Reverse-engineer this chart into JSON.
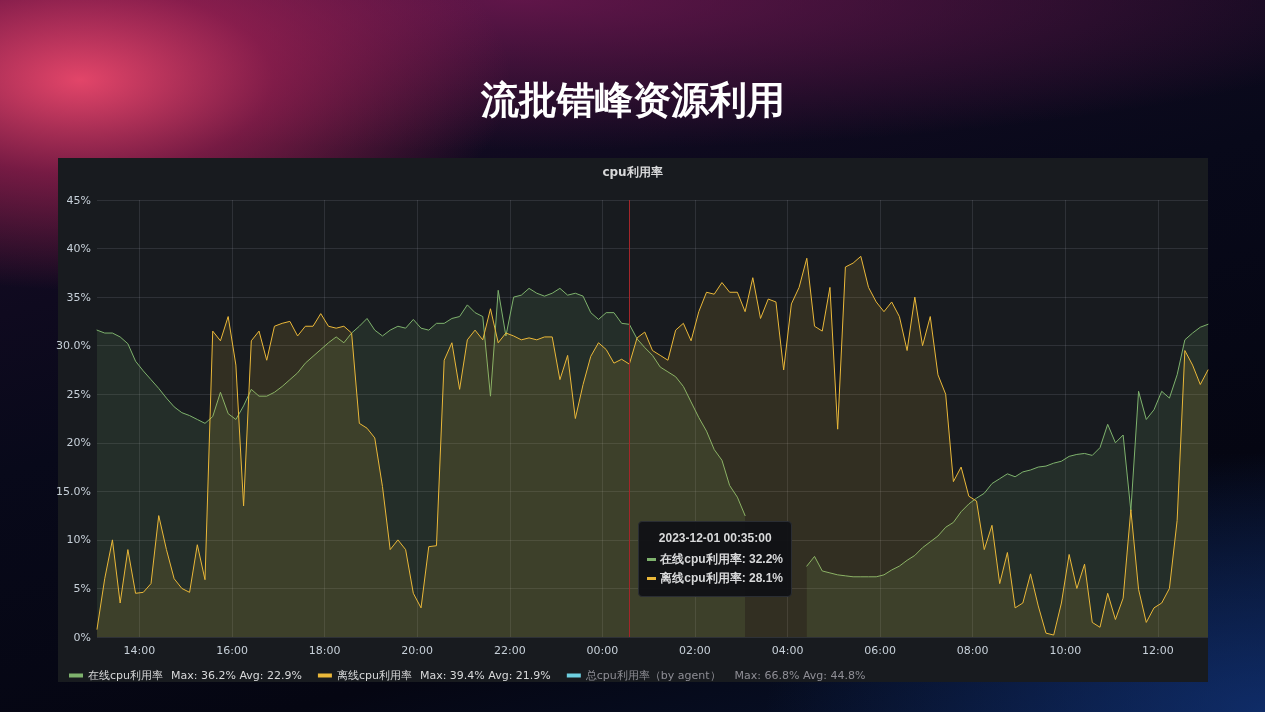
{
  "chart_data": {
    "type": "area",
    "title": "流批错峰资源利用",
    "subtitle": "cpu利用率",
    "x": [
      "2023-11-30T13:05",
      "2023-11-30T13:15",
      "2023-11-30T13:25",
      "2023-11-30T13:35",
      "2023-11-30T13:45",
      "2023-11-30T13:55",
      "2023-11-30T14:05",
      "2023-11-30T14:15",
      "2023-11-30T14:25",
      "2023-11-30T14:35",
      "2023-11-30T14:45",
      "2023-11-30T14:55",
      "2023-11-30T15:05",
      "2023-11-30T15:15",
      "2023-11-30T15:25",
      "2023-11-30T15:35",
      "2023-11-30T15:45",
      "2023-11-30T15:55",
      "2023-11-30T16:05",
      "2023-11-30T16:15",
      "2023-11-30T16:25",
      "2023-11-30T16:35",
      "2023-11-30T16:45",
      "2023-11-30T16:55",
      "2023-11-30T17:05",
      "2023-11-30T17:15",
      "2023-11-30T17:25",
      "2023-11-30T17:35",
      "2023-11-30T17:45",
      "2023-11-30T17:55",
      "2023-11-30T18:05",
      "2023-11-30T18:15",
      "2023-11-30T18:25",
      "2023-11-30T18:35",
      "2023-11-30T18:45",
      "2023-11-30T18:55",
      "2023-11-30T19:05",
      "2023-11-30T19:15",
      "2023-11-30T19:25",
      "2023-11-30T19:35",
      "2023-11-30T19:45",
      "2023-11-30T19:55",
      "2023-11-30T20:05",
      "2023-11-30T20:15",
      "2023-11-30T20:25",
      "2023-11-30T20:35",
      "2023-11-30T20:45",
      "2023-11-30T20:55",
      "2023-11-30T21:05",
      "2023-11-30T21:15",
      "2023-11-30T21:25",
      "2023-11-30T21:35",
      "2023-11-30T21:45",
      "2023-11-30T21:55",
      "2023-11-30T22:05",
      "2023-11-30T22:15",
      "2023-11-30T22:25",
      "2023-11-30T22:35",
      "2023-11-30T22:45",
      "2023-11-30T22:55",
      "2023-11-30T23:05",
      "2023-11-30T23:15",
      "2023-11-30T23:25",
      "2023-11-30T23:35",
      "2023-11-30T23:45",
      "2023-11-30T23:55",
      "2023-12-01T00:05",
      "2023-12-01T00:15",
      "2023-12-01T00:25",
      "2023-12-01T00:35",
      "2023-12-01T00:45",
      "2023-12-01T00:55",
      "2023-12-01T01:05",
      "2023-12-01T01:15",
      "2023-12-01T01:25",
      "2023-12-01T01:35",
      "2023-12-01T01:45",
      "2023-12-01T01:55",
      "2023-12-01T02:05",
      "2023-12-01T02:15",
      "2023-12-01T02:25",
      "2023-12-01T02:35",
      "2023-12-01T02:45",
      "2023-12-01T02:55",
      "2023-12-01T03:05",
      "2023-12-01T03:15",
      "2023-12-01T03:25",
      "2023-12-01T03:35",
      "2023-12-01T03:45",
      "2023-12-01T03:55",
      "2023-12-01T04:05",
      "2023-12-01T04:15",
      "2023-12-01T04:25",
      "2023-12-01T04:35",
      "2023-12-01T04:45",
      "2023-12-01T04:55",
      "2023-12-01T05:05",
      "2023-12-01T05:15",
      "2023-12-01T05:25",
      "2023-12-01T05:35",
      "2023-12-01T05:45",
      "2023-12-01T05:55",
      "2023-12-01T06:05",
      "2023-12-01T06:15",
      "2023-12-01T06:25",
      "2023-12-01T06:35",
      "2023-12-01T06:45",
      "2023-12-01T06:55",
      "2023-12-01T07:05",
      "2023-12-01T07:15",
      "2023-12-01T07:25",
      "2023-12-01T07:35",
      "2023-12-01T07:45",
      "2023-12-01T07:55",
      "2023-12-01T08:05",
      "2023-12-01T08:15",
      "2023-12-01T08:25",
      "2023-12-01T08:35",
      "2023-12-01T08:45",
      "2023-12-01T08:55",
      "2023-12-01T09:05",
      "2023-12-01T09:15",
      "2023-12-01T09:25",
      "2023-12-01T09:35",
      "2023-12-01T09:45",
      "2023-12-01T09:55",
      "2023-12-01T10:05",
      "2023-12-01T10:15",
      "2023-12-01T10:25",
      "2023-12-01T10:35",
      "2023-12-01T10:45",
      "2023-12-01T10:55",
      "2023-12-01T11:05",
      "2023-12-01T11:15",
      "2023-12-01T11:25",
      "2023-12-01T11:35",
      "2023-12-01T11:45",
      "2023-12-01T11:55",
      "2023-12-01T12:05",
      "2023-12-01T12:15",
      "2023-12-01T12:25",
      "2023-12-01T12:35",
      "2023-12-01T12:45",
      "2023-12-01T12:55",
      "2023-12-01T13:05"
    ],
    "series": [
      {
        "name": "在线cpu利用率",
        "color": "#7eb26d",
        "values": [
          31.6,
          31.3,
          31.3,
          30.9,
          30.2,
          28.4,
          27.4,
          26.5,
          25.6,
          24.6,
          23.7,
          23.1,
          22.8,
          22.4,
          22.0,
          22.7,
          25.2,
          23.0,
          22.4,
          23.8,
          25.5,
          24.8,
          24.8,
          25.2,
          25.8,
          26.5,
          27.2,
          28.2,
          28.9,
          29.6,
          30.3,
          30.9,
          30.3,
          31.3,
          32.0,
          32.8,
          31.6,
          31.0,
          31.6,
          32.0,
          31.8,
          32.7,
          31.8,
          31.6,
          32.3,
          32.3,
          32.8,
          33.0,
          34.2,
          33.4,
          33.0,
          24.8,
          35.7,
          31.0,
          35.0,
          35.2,
          35.9,
          35.4,
          35.1,
          35.4,
          35.9,
          35.2,
          35.4,
          35.1,
          33.4,
          32.7,
          33.4,
          33.4,
          32.3,
          32.2,
          30.7,
          29.8,
          29.0,
          27.8,
          27.3,
          26.8,
          25.8,
          24.2,
          22.6,
          21.2,
          19.3,
          18.2,
          15.6,
          14.4,
          12.5,
          null,
          null,
          null,
          null,
          null,
          null,
          null,
          7.3,
          8.3,
          6.8,
          6.6,
          6.4,
          6.3,
          6.2,
          6.2,
          6.2,
          6.2,
          6.4,
          6.9,
          7.3,
          7.9,
          8.4,
          9.2,
          9.8,
          10.4,
          11.3,
          11.8,
          12.9,
          13.7,
          14.3,
          14.8,
          15.8,
          16.3,
          16.8,
          16.5,
          17.0,
          17.2,
          17.5,
          17.6,
          17.9,
          18.1,
          18.6,
          18.8,
          18.9,
          18.7,
          19.5,
          21.9,
          20.0,
          20.8,
          13.0,
          25.3,
          22.4,
          23.4,
          25.3,
          24.6,
          27.0,
          30.6,
          31.3,
          31.9,
          32.2
        ]
      },
      {
        "name": "离线cpu利用率",
        "color": "#eab839",
        "values": [
          0.8,
          6.0,
          10.0,
          3.5,
          9.0,
          4.5,
          4.6,
          5.5,
          12.5,
          9.0,
          6.0,
          5.0,
          4.6,
          9.5,
          5.9,
          31.5,
          30.5,
          33.0,
          28.0,
          13.5,
          30.5,
          31.5,
          28.5,
          32.0,
          32.3,
          32.5,
          31.0,
          32.0,
          32.0,
          33.3,
          32.0,
          31.8,
          32.0,
          31.3,
          22.0,
          21.5,
          20.5,
          15.5,
          9.0,
          10.0,
          9.0,
          4.5,
          3.0,
          9.3,
          9.4,
          28.5,
          30.3,
          25.5,
          30.6,
          31.6,
          30.6,
          33.8,
          30.3,
          31.3,
          31.0,
          30.6,
          30.8,
          30.6,
          30.9,
          30.9,
          26.5,
          29.0,
          22.5,
          26.0,
          28.9,
          30.3,
          29.6,
          28.2,
          28.6,
          28.1,
          30.8,
          31.4,
          29.5,
          29.0,
          28.5,
          31.6,
          32.3,
          30.5,
          33.5,
          35.5,
          35.3,
          36.5,
          35.5,
          35.5,
          33.5,
          37.0,
          32.8,
          34.8,
          34.5,
          27.5,
          34.3,
          36.0,
          39.0,
          32.0,
          31.5,
          36.0,
          21.4,
          38.1,
          38.5,
          39.2,
          36.0,
          34.5,
          33.5,
          34.5,
          33.0,
          29.5,
          35.0,
          30.0,
          33.0,
          27.0,
          25.0,
          16.0,
          17.5,
          14.5,
          14.0,
          9.0,
          11.5,
          5.5,
          8.7,
          3.0,
          3.5,
          6.5,
          3.2,
          0.4,
          0.2,
          3.5,
          8.5,
          5.0,
          7.5,
          1.5,
          1.0,
          4.5,
          1.8,
          4.0,
          13.1,
          4.9,
          1.5,
          3.0,
          3.5,
          5.0,
          12.0,
          29.5,
          28.0,
          26.0,
          27.5
        ]
      },
      {
        "name": "总cpu利用率（by agent）",
        "color": "#6ed0e0",
        "values": [
          null,
          null,
          null,
          null,
          null,
          null,
          null,
          null,
          null,
          null,
          null,
          null,
          null,
          null,
          null,
          null,
          null,
          null,
          null,
          null,
          null,
          null,
          null,
          null,
          null,
          null,
          null,
          null,
          null,
          null,
          null,
          null,
          null,
          null,
          null,
          null,
          null,
          null,
          null,
          null,
          null,
          null,
          null,
          null,
          null,
          null,
          null,
          null,
          null,
          null,
          null,
          null,
          null,
          null,
          null,
          null,
          null,
          null,
          null,
          null,
          null,
          null,
          null,
          null,
          null,
          null,
          null,
          null,
          null,
          null,
          null,
          null,
          null,
          null,
          null,
          null,
          null,
          null,
          null,
          null,
          null,
          null,
          null,
          null,
          null,
          null,
          null,
          null,
          null,
          null,
          null,
          null,
          null,
          null,
          null,
          null,
          null,
          null,
          null,
          null,
          null,
          null,
          null,
          null,
          null,
          null,
          null,
          null,
          null,
          null,
          null,
          null,
          null,
          null,
          null,
          null,
          null,
          null,
          null,
          null,
          null,
          null,
          null,
          null,
          null,
          null,
          null,
          null,
          null,
          null,
          null,
          null,
          null,
          null,
          null,
          null,
          null,
          null,
          null,
          null,
          null,
          null,
          null,
          null,
          null
        ]
      }
    ],
    "xlim": [
      "2023-11-30T13:05",
      "2023-12-01T13:05"
    ],
    "xticks": [
      {
        "value": "2023-11-30T14:00",
        "label": "14:00"
      },
      {
        "value": "2023-11-30T16:00",
        "label": "16:00"
      },
      {
        "value": "2023-11-30T18:00",
        "label": "18:00"
      },
      {
        "value": "2023-11-30T20:00",
        "label": "20:00"
      },
      {
        "value": "2023-11-30T22:00",
        "label": "22:00"
      },
      {
        "value": "2023-12-01T00:00",
        "label": "00:00"
      },
      {
        "value": "2023-12-01T02:00",
        "label": "02:00"
      },
      {
        "value": "2023-12-01T04:00",
        "label": "04:00"
      },
      {
        "value": "2023-12-01T06:00",
        "label": "06:00"
      },
      {
        "value": "2023-12-01T08:00",
        "label": "08:00"
      },
      {
        "value": "2023-12-01T10:00",
        "label": "10:00"
      },
      {
        "value": "2023-12-01T12:00",
        "label": "12:00"
      }
    ],
    "ylim": [
      0,
      45
    ],
    "yticks": [
      {
        "value": 0,
        "label": "0%"
      },
      {
        "value": 5,
        "label": "5%"
      },
      {
        "value": 10,
        "label": "10%"
      },
      {
        "value": 15,
        "label": "15.0%"
      },
      {
        "value": 20,
        "label": "20%"
      },
      {
        "value": 25,
        "label": "25%"
      },
      {
        "value": 30,
        "label": "30.0%"
      },
      {
        "value": 35,
        "label": "35%"
      },
      {
        "value": 40,
        "label": "40%"
      },
      {
        "value": 45,
        "label": "45%"
      }
    ],
    "ref_lines": [
      {
        "axis": "x",
        "value": "2023-12-01T00:35",
        "color": "#a3262a"
      }
    ],
    "annotations": [
      "Max: 36.2% Avg: 22.9%",
      "Max: 39.4% Avg: 21.9%",
      "Max: 66.8% Avg: 44.8%",
      "2023-12-01 00:35:00",
      "在线cpu利用率: 32.2%",
      "离线cpu利用率: 28.1%"
    ],
    "grid": true,
    "legend": "bottom left",
    "marker": "none"
  }
}
